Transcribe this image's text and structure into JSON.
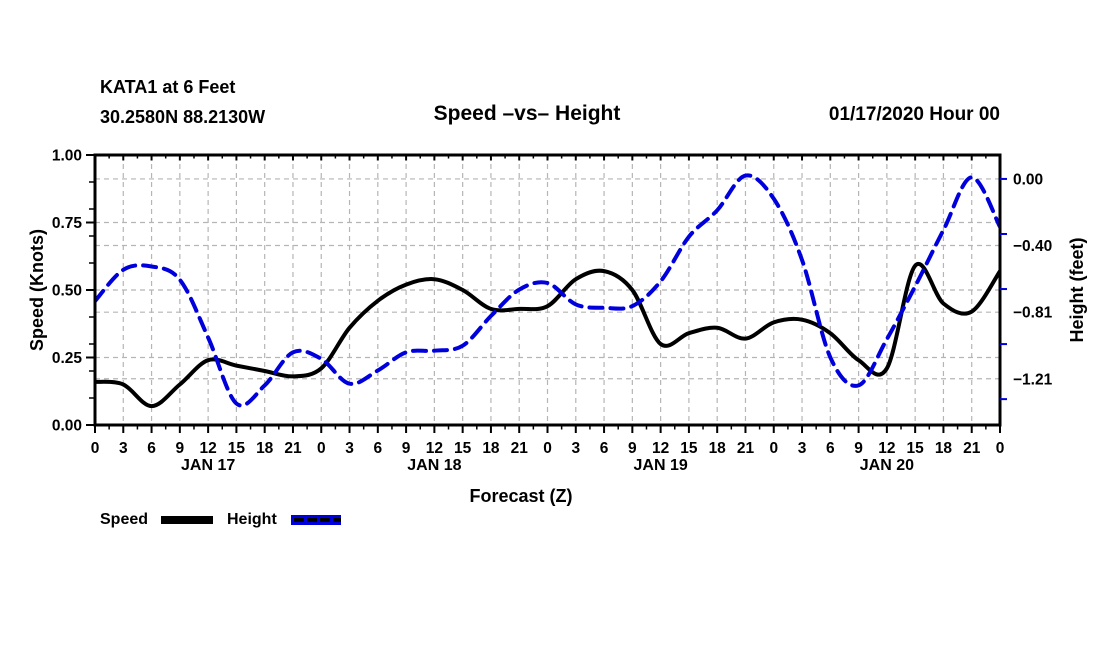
{
  "header": {
    "station_line1": "KATA1 at 6 Feet",
    "station_line2": "30.2580N 88.2130W",
    "datetime_label": "01/17/2020 Hour 00"
  },
  "chart_data": {
    "type": "line",
    "title": "Speed –vs– Height",
    "xlabel": "Forecast (Z)",
    "hours": [
      0,
      3,
      6,
      9,
      12,
      15,
      18,
      21,
      24,
      27,
      30,
      33,
      36,
      39,
      42,
      45,
      48,
      51,
      54,
      57,
      60,
      63,
      66,
      69,
      72,
      75,
      78,
      81,
      84,
      87,
      90,
      93,
      96
    ],
    "x_axis": {
      "tick_labels": [
        "0",
        "3",
        "6",
        "9",
        "12",
        "15",
        "18",
        "21",
        "0",
        "3",
        "6",
        "9",
        "12",
        "15",
        "18",
        "21",
        "0",
        "3",
        "6",
        "9",
        "12",
        "15",
        "18",
        "21",
        "0",
        "3",
        "6",
        "9",
        "12",
        "15",
        "18",
        "21",
        "0"
      ],
      "minor_tick_step_hours": 1.5,
      "day_labels": [
        {
          "label": "JAN 17",
          "hour": 12
        },
        {
          "label": "JAN 18",
          "hour": 36
        },
        {
          "label": "JAN 19",
          "hour": 60
        },
        {
          "label": "JAN 20",
          "hour": 84
        }
      ]
    },
    "left_axis": {
      "label": "Speed (Knots)",
      "range": [
        0.0,
        1.0
      ],
      "ticks": [
        0.0,
        0.25,
        0.5,
        0.75,
        1.0
      ],
      "tick_labels": [
        "0.00",
        "0.25",
        "0.50",
        "0.75",
        "1.00"
      ],
      "minor_tick_step": 0.1
    },
    "right_axis": {
      "label": "Height (feet)",
      "range": [
        -1.49,
        0.145
      ],
      "tick_values": [
        0.0,
        -0.403,
        -0.807,
        -1.21
      ],
      "tick_labels": [
        "0.00",
        "−0.40",
        "−0.81",
        "−1.21"
      ],
      "minor_tick_values": [
        0.0,
        -0.3333,
        -0.6667,
        -1.0,
        -1.3333
      ]
    },
    "series": [
      {
        "name": "Speed",
        "axis": "left",
        "color": "#000000",
        "style": "solid",
        "values": [
          0.16,
          0.15,
          0.07,
          0.15,
          0.24,
          0.22,
          0.2,
          0.18,
          0.21,
          0.36,
          0.46,
          0.52,
          0.54,
          0.5,
          0.43,
          0.43,
          0.44,
          0.54,
          0.57,
          0.5,
          0.3,
          0.34,
          0.36,
          0.32,
          0.38,
          0.39,
          0.34,
          0.24,
          0.21,
          0.59,
          0.45,
          0.42,
          0.57
        ]
      },
      {
        "name": "Height",
        "axis": "right",
        "color": "#0000dd",
        "style": "dashed",
        "values": [
          -0.74,
          -0.55,
          -0.53,
          -0.61,
          -0.96,
          -1.36,
          -1.25,
          -1.05,
          -1.09,
          -1.24,
          -1.16,
          -1.05,
          -1.04,
          -1.01,
          -0.83,
          -0.67,
          -0.63,
          -0.76,
          -0.78,
          -0.77,
          -0.62,
          -0.35,
          -0.19,
          0.02,
          -0.12,
          -0.49,
          -1.08,
          -1.25,
          -0.97,
          -0.65,
          -0.31,
          0.01,
          -0.29
        ]
      }
    ],
    "grid": {
      "color": "#b5b5b5",
      "style": "dashed"
    },
    "legend_position": "bottom-left"
  },
  "colors": {
    "speed": "#000000",
    "height": "#0000dd",
    "grid": "#b5b5b5",
    "background": "#ffffff",
    "text": "#000000"
  }
}
